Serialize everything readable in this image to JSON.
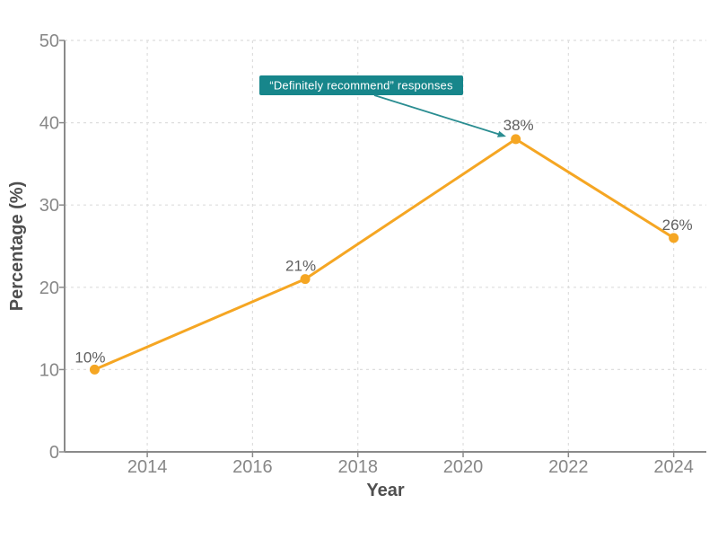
{
  "chart_data": {
    "type": "line",
    "title": "",
    "xlabel": "Year",
    "ylabel": "Percentage (%)",
    "x": [
      2013,
      2017,
      2021,
      2024
    ],
    "values": [
      10,
      21,
      38,
      26
    ],
    "data_labels": [
      "10%",
      "21%",
      "38%",
      "26%"
    ],
    "xticks": [
      2014,
      2016,
      2018,
      2020,
      2022,
      2024
    ],
    "yticks": [
      0,
      10,
      20,
      30,
      40,
      50
    ],
    "xlim": [
      2012.43,
      2024.62
    ],
    "ylim": [
      0,
      50
    ],
    "grid": true,
    "legend_position": "none",
    "annotation": {
      "text": "“Definitely recommend” responses",
      "points_to": {
        "x": 2021,
        "y": 38
      }
    },
    "colors": {
      "line": "#f5a623",
      "marker": "#f5a623",
      "annotation_box": "#17868b",
      "annotation_text": "#ffffff",
      "arrow": "#2a8d91",
      "grid": "#dedede",
      "axis": "#8a8a8a",
      "tick_label": "#878787",
      "axis_title": "#4f4f4f",
      "data_label": "#5f5f5f",
      "background": "#ffffff"
    }
  }
}
